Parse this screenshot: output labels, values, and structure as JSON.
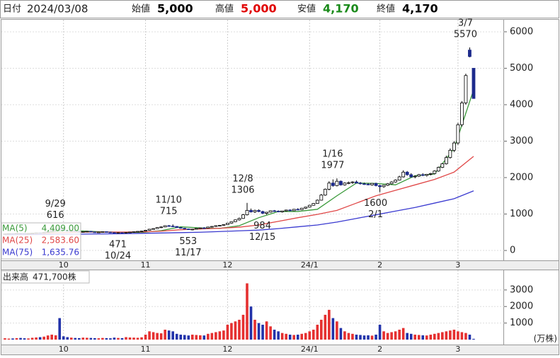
{
  "header": {
    "date_label": "日付",
    "date": "2024/03/08",
    "fields": [
      {
        "label": "始値",
        "value": "5,000",
        "color": "#000000"
      },
      {
        "label": "高値",
        "value": "5,000",
        "color": "#e00000"
      },
      {
        "label": "安値",
        "value": "4,170",
        "color": "#1a8a1a"
      },
      {
        "label": "終値",
        "value": "4,170",
        "color": "#000000"
      }
    ]
  },
  "chart_data": [
    {
      "type": "candlestick",
      "xlim": [
        -0.9,
        127.8
      ],
      "ylim": [
        -271,
        6329
      ],
      "yticks": [
        0,
        1000,
        2000,
        3000,
        4000,
        5000,
        6000
      ],
      "grid": true,
      "xticks": [
        {
          "value": 15,
          "label": "10"
        },
        {
          "value": 36,
          "label": "11"
        },
        {
          "value": 57,
          "label": "12"
        },
        {
          "value": 78,
          "label": "24/1"
        },
        {
          "value": 96,
          "label": "2"
        },
        {
          "value": 116,
          "label": "3"
        }
      ],
      "up_color": "#ffffff",
      "down_color": "#1c2a8c",
      "ohlc": [
        [
          450,
          462,
          445,
          458
        ],
        [
          458,
          470,
          452,
          465
        ],
        [
          465,
          468,
          455,
          460
        ],
        [
          460,
          475,
          458,
          472
        ],
        [
          472,
          480,
          465,
          468
        ],
        [
          468,
          472,
          458,
          462
        ],
        [
          462,
          470,
          455,
          466
        ],
        [
          466,
          478,
          462,
          475
        ],
        [
          475,
          490,
          470,
          485
        ],
        [
          485,
          492,
          475,
          480
        ],
        [
          480,
          500,
          478,
          495
        ],
        [
          495,
          530,
          490,
          520
        ],
        [
          520,
          560,
          510,
          545
        ],
        [
          545,
          580,
          530,
          560
        ],
        [
          600,
          616,
          540,
          575
        ],
        [
          575,
          585,
          540,
          550
        ],
        [
          550,
          560,
          525,
          530
        ],
        [
          530,
          545,
          520,
          540
        ],
        [
          540,
          548,
          515,
          520
        ],
        [
          520,
          530,
          505,
          510
        ],
        [
          510,
          525,
          500,
          518
        ],
        [
          518,
          530,
          510,
          525
        ],
        [
          525,
          535,
          505,
          508
        ],
        [
          508,
          515,
          495,
          500
        ],
        [
          500,
          512,
          490,
          505
        ],
        [
          505,
          520,
          498,
          515
        ],
        [
          515,
          522,
          500,
          502
        ],
        [
          502,
          510,
          488,
          492
        ],
        [
          492,
          500,
          480,
          485
        ],
        [
          485,
          495,
          478,
          490
        ],
        [
          490,
          498,
          471,
          480
        ],
        [
          480,
          500,
          476,
          496
        ],
        [
          496,
          510,
          490,
          505
        ],
        [
          505,
          520,
          500,
          515
        ],
        [
          515,
          530,
          508,
          525
        ],
        [
          525,
          540,
          518,
          535
        ],
        [
          535,
          560,
          530,
          555
        ],
        [
          555,
          590,
          550,
          585
        ],
        [
          585,
          610,
          575,
          600
        ],
        [
          600,
          640,
          595,
          630
        ],
        [
          630,
          660,
          615,
          645
        ],
        [
          645,
          690,
          640,
          680
        ],
        [
          680,
          700,
          660,
          670
        ],
        [
          670,
          715,
          650,
          660
        ],
        [
          660,
          665,
          620,
          630
        ],
        [
          630,
          640,
          600,
          610
        ],
        [
          610,
          620,
          580,
          590
        ],
        [
          590,
          600,
          565,
          575
        ],
        [
          575,
          590,
          553,
          585
        ],
        [
          585,
          610,
          580,
          605
        ],
        [
          605,
          630,
          600,
          620
        ],
        [
          620,
          640,
          610,
          615
        ],
        [
          615,
          650,
          610,
          645
        ],
        [
          645,
          670,
          635,
          660
        ],
        [
          660,
          690,
          650,
          680
        ],
        [
          680,
          700,
          665,
          690
        ],
        [
          690,
          720,
          680,
          710
        ],
        [
          710,
          760,
          700,
          750
        ],
        [
          750,
          800,
          740,
          790
        ],
        [
          790,
          850,
          780,
          840
        ],
        [
          840,
          900,
          820,
          880
        ],
        [
          880,
          1000,
          870,
          980
        ],
        [
          980,
          1306,
          960,
          1100
        ],
        [
          1100,
          1150,
          1040,
          1060
        ],
        [
          1060,
          1120,
          1030,
          1100
        ],
        [
          1100,
          1130,
          1050,
          1070
        ],
        [
          1070,
          1090,
          1000,
          1020
        ],
        [
          1020,
          1060,
          984,
          1050
        ],
        [
          1050,
          1100,
          1040,
          1090
        ],
        [
          1090,
          1110,
          1060,
          1080
        ],
        [
          1080,
          1100,
          1050,
          1060
        ],
        [
          1060,
          1090,
          1040,
          1085
        ],
        [
          1085,
          1120,
          1070,
          1110
        ],
        [
          1110,
          1130,
          1080,
          1090
        ],
        [
          1090,
          1140,
          1085,
          1130
        ],
        [
          1130,
          1160,
          1110,
          1120
        ],
        [
          1120,
          1170,
          1115,
          1160
        ],
        [
          1160,
          1200,
          1140,
          1190
        ],
        [
          1190,
          1250,
          1180,
          1240
        ],
        [
          1240,
          1300,
          1230,
          1290
        ],
        [
          1290,
          1400,
          1280,
          1380
        ],
        [
          1380,
          1550,
          1370,
          1520
        ],
        [
          1520,
          1700,
          1500,
          1680
        ],
        [
          1680,
          1900,
          1650,
          1850
        ],
        [
          1850,
          1950,
          1750,
          1780
        ],
        [
          1780,
          1977,
          1760,
          1900
        ],
        [
          1900,
          1920,
          1780,
          1800
        ],
        [
          1800,
          1870,
          1780,
          1850
        ],
        [
          1850,
          1890,
          1820,
          1860
        ],
        [
          1860,
          1900,
          1830,
          1880
        ],
        [
          1880,
          1920,
          1840,
          1850
        ],
        [
          1850,
          1880,
          1810,
          1830
        ],
        [
          1830,
          1860,
          1800,
          1820
        ],
        [
          1820,
          1850,
          1790,
          1800
        ],
        [
          1800,
          1850,
          1780,
          1840
        ],
        [
          1840,
          1860,
          1760,
          1780
        ],
        [
          1780,
          1800,
          1600,
          1750
        ],
        [
          1750,
          1800,
          1720,
          1790
        ],
        [
          1790,
          1850,
          1770,
          1830
        ],
        [
          1830,
          1900,
          1810,
          1880
        ],
        [
          1880,
          1950,
          1860,
          1930
        ],
        [
          1930,
          2050,
          1920,
          2020
        ],
        [
          2020,
          2200,
          2000,
          2150
        ],
        [
          2150,
          2180,
          2050,
          2080
        ],
        [
          2080,
          2120,
          2000,
          2020
        ],
        [
          2020,
          2060,
          1980,
          2040
        ],
        [
          2040,
          2100,
          2020,
          2080
        ],
        [
          2080,
          2120,
          2040,
          2060
        ],
        [
          2060,
          2100,
          2030,
          2090
        ],
        [
          2090,
          2130,
          2060,
          2110
        ],
        [
          2110,
          2200,
          2090,
          2180
        ],
        [
          2180,
          2300,
          2160,
          2280
        ],
        [
          2280,
          2400,
          2260,
          2380
        ],
        [
          2380,
          2600,
          2360,
          2550
        ],
        [
          2550,
          2800,
          2520,
          2750
        ],
        [
          2750,
          3000,
          2700,
          2950
        ],
        [
          2950,
          3500,
          2900,
          3450
        ],
        [
          3450,
          4100,
          3400,
          4050
        ],
        [
          4050,
          4850,
          4000,
          4800
        ],
        [
          5500,
          5570,
          5300,
          5320
        ],
        [
          5000,
          5000,
          4170,
          4170
        ]
      ],
      "series": [
        {
          "name": "MA(5)",
          "color": "#3a9a3a",
          "value_label": "4,409.00",
          "x": [
            0,
            5,
            10,
            15,
            20,
            25,
            30,
            35,
            40,
            45,
            50,
            55,
            60,
            65,
            70,
            75,
            80,
            85,
            90,
            95,
            100,
            105,
            110,
            115,
            120
          ],
          "values": [
            460,
            465,
            480,
            545,
            535,
            510,
            500,
            495,
            545,
            650,
            620,
            605,
            680,
            900,
            1070,
            1070,
            1130,
            1500,
            1850,
            1840,
            1800,
            2050,
            2100,
            2800,
            4409
          ]
        },
        {
          "name": "MA(25)",
          "color": "#e04848",
          "value_label": "2,583.60",
          "x": [
            0,
            5,
            10,
            15,
            20,
            25,
            30,
            35,
            40,
            45,
            50,
            55,
            60,
            65,
            70,
            75,
            80,
            85,
            90,
            95,
            100,
            105,
            110,
            115,
            120
          ],
          "values": [
            455,
            460,
            470,
            490,
            505,
            505,
            505,
            510,
            530,
            570,
            590,
            610,
            640,
            700,
            800,
            900,
            990,
            1100,
            1300,
            1500,
            1650,
            1800,
            1950,
            2150,
            2583.6
          ]
        },
        {
          "name": "MA(75)",
          "color": "#3a3ad0",
          "value_label": "1,635.76",
          "x": [
            0,
            5,
            10,
            15,
            20,
            25,
            30,
            35,
            40,
            45,
            50,
            55,
            60,
            65,
            70,
            75,
            80,
            85,
            90,
            95,
            100,
            105,
            110,
            115,
            120
          ],
          "values": [
            430,
            435,
            440,
            445,
            450,
            455,
            460,
            470,
            480,
            490,
            500,
            520,
            540,
            560,
            600,
            650,
            700,
            780,
            880,
            980,
            1080,
            1180,
            1300,
            1420,
            1635.76
          ]
        }
      ],
      "annotations": [
        {
          "date": "9/29",
          "value": 616
        },
        {
          "date": "10/24",
          "value": 471
        },
        {
          "date": "11/10",
          "value": 715
        },
        {
          "date": "11/17",
          "value": 553
        },
        {
          "date": "12/8",
          "value": 1306
        },
        {
          "date": "12/15",
          "value": 984
        },
        {
          "date": "1/16",
          "value": 1977
        },
        {
          "date": "2/1",
          "value": 1600
        },
        {
          "date": "3/7",
          "value": 5570
        }
      ]
    },
    {
      "type": "bar",
      "title": "出来高",
      "value_label": "471,700株",
      "unit": "(万株)",
      "xlim": [
        -0.9,
        127.8
      ],
      "ylim": [
        0,
        4190
      ],
      "yticks": [
        1000,
        2000,
        3000
      ],
      "grid": true,
      "xticks": [
        {
          "value": 15,
          "label": "10"
        },
        {
          "value": 36,
          "label": "11"
        },
        {
          "value": 57,
          "label": "12"
        },
        {
          "value": 78,
          "label": "24/1"
        },
        {
          "value": 96,
          "label": "2"
        },
        {
          "value": 116,
          "label": "3"
        }
      ],
      "up_color": "#e53030",
      "down_color": "#2233aa",
      "values": [
        80,
        60,
        70,
        90,
        100,
        80,
        70,
        110,
        130,
        150,
        180,
        250,
        300,
        260,
        1300,
        200,
        150,
        120,
        100,
        90,
        120,
        110,
        100,
        90,
        80,
        100,
        90,
        80,
        120,
        100,
        90,
        150,
        130,
        120,
        110,
        140,
        300,
        500,
        450,
        400,
        380,
        600,
        550,
        500,
        350,
        300,
        280,
        250,
        300,
        280,
        260,
        250,
        350,
        400,
        450,
        500,
        550,
        900,
        1000,
        1100,
        1200,
        1500,
        3400,
        2000,
        1200,
        1000,
        900,
        1100,
        800,
        600,
        500,
        400,
        350,
        300,
        280,
        300,
        350,
        400,
        500,
        600,
        900,
        1200,
        1500,
        1800,
        1300,
        1100,
        700,
        500,
        400,
        350,
        300,
        280,
        250,
        260,
        240,
        300,
        900,
        500,
        400,
        450,
        500,
        600,
        700,
        400,
        350,
        300,
        280,
        260,
        250,
        300,
        350,
        400,
        450,
        500,
        550,
        600,
        500,
        450,
        400,
        300,
        47.17
      ]
    }
  ]
}
